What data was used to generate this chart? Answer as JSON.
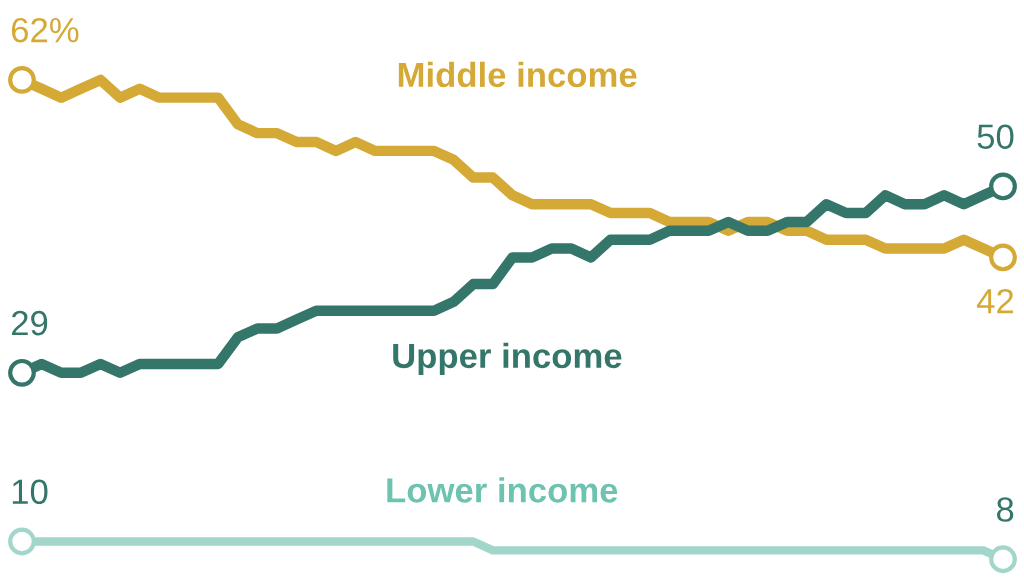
{
  "chart_data": {
    "type": "line",
    "categories": [
      null,
      null,
      null,
      null,
      null,
      null,
      null,
      null,
      null,
      null,
      null,
      null,
      null,
      null,
      null,
      null,
      null,
      null,
      null,
      null,
      null,
      null,
      null,
      null,
      null,
      null,
      null,
      null,
      null,
      null,
      null,
      null,
      null,
      null,
      null,
      null,
      null,
      null,
      null,
      null,
      null,
      null,
      null,
      null,
      null,
      null,
      null,
      null,
      null,
      null,
      null
    ],
    "relative": false,
    "ylim": [
      6,
      71
    ],
    "tick_labels": false,
    "legend": false,
    "line_style": "solid",
    "series": [
      {
        "name": "Middle income",
        "color": "#d4a935",
        "values": [
          62,
          61,
          60,
          61,
          62,
          60,
          61,
          60,
          60,
          60,
          60,
          57,
          56,
          56,
          55,
          55,
          54,
          55,
          54,
          54,
          54,
          54,
          53,
          51,
          51,
          49,
          48,
          48,
          48,
          48,
          47,
          47,
          47,
          46,
          46,
          46,
          45,
          46,
          46,
          45,
          45,
          44,
          44,
          44,
          43,
          43,
          43,
          43,
          44,
          43,
          42
        ],
        "value_labels": [
          "62%",
          null,
          null,
          null,
          null,
          null,
          null,
          null,
          null,
          null,
          null,
          null,
          null,
          null,
          null,
          null,
          null,
          null,
          null,
          null,
          null,
          null,
          null,
          null,
          null,
          null,
          null,
          null,
          null,
          null,
          null,
          null,
          null,
          null,
          null,
          null,
          null,
          null,
          null,
          null,
          null,
          null,
          null,
          null,
          null,
          null,
          null,
          null,
          null,
          null,
          "42"
        ]
      },
      {
        "name": "Upper income",
        "color": "#35766a",
        "values": [
          29,
          30,
          29,
          29,
          30,
          29,
          30,
          30,
          30,
          30,
          30,
          33,
          34,
          34,
          35,
          36,
          36,
          36,
          36,
          36,
          36,
          36,
          37,
          39,
          39,
          42,
          42,
          43,
          43,
          42,
          44,
          44,
          44,
          45,
          45,
          45,
          46,
          45,
          45,
          46,
          46,
          48,
          47,
          47,
          49,
          48,
          48,
          49,
          48,
          49,
          50
        ],
        "value_labels": [
          "29",
          null,
          null,
          null,
          null,
          null,
          null,
          null,
          null,
          null,
          null,
          null,
          null,
          null,
          null,
          null,
          null,
          null,
          null,
          null,
          null,
          null,
          null,
          null,
          null,
          null,
          null,
          null,
          null,
          null,
          null,
          null,
          null,
          null,
          null,
          null,
          null,
          null,
          null,
          null,
          null,
          null,
          null,
          null,
          null,
          null,
          null,
          null,
          null,
          null,
          "50"
        ]
      },
      {
        "name": "Lower income",
        "color": "#a3d6cb",
        "values": [
          10,
          10,
          10,
          10,
          10,
          10,
          10,
          10,
          10,
          10,
          10,
          10,
          10,
          10,
          10,
          10,
          10,
          10,
          10,
          10,
          10,
          10,
          10,
          10,
          9,
          9,
          9,
          9,
          9,
          9,
          9,
          9,
          9,
          9,
          9,
          9,
          9,
          9,
          9,
          9,
          9,
          9,
          9,
          9,
          9,
          9,
          9,
          9,
          9,
          9,
          8
        ],
        "value_labels": [
          "10",
          null,
          null,
          null,
          null,
          null,
          null,
          null,
          null,
          null,
          null,
          null,
          null,
          null,
          null,
          null,
          null,
          null,
          null,
          null,
          null,
          null,
          null,
          null,
          null,
          null,
          null,
          null,
          null,
          null,
          null,
          null,
          null,
          null,
          null,
          null,
          null,
          null,
          null,
          null,
          null,
          null,
          null,
          null,
          null,
          null,
          null,
          null,
          null,
          null,
          "8"
        ]
      }
    ]
  }
}
